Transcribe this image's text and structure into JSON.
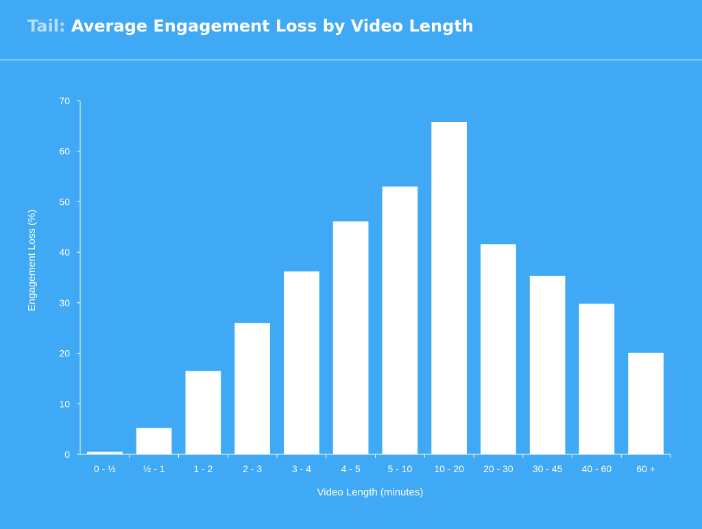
{
  "header": {
    "title_prefix": "Tail:",
    "title_main": "Average Engagement Loss by Video Length"
  },
  "chart_data": {
    "type": "bar",
    "title": "Tail: Average Engagement Loss by Video Length",
    "xlabel": "Video Length (minutes)",
    "ylabel": "Engagement Loss (%)",
    "ylim": [
      0,
      70
    ],
    "yticks": [
      0,
      10,
      20,
      30,
      40,
      50,
      60,
      70
    ],
    "categories": [
      "0 - ½",
      "½ - 1",
      "1 - 2",
      "2 - 3",
      "3 - 4",
      "4 - 5",
      "5 - 10",
      "10 - 20",
      "20 - 30",
      "30 - 45",
      "40 - 60",
      "60 +"
    ],
    "values": [
      0.5,
      5.2,
      16.5,
      26,
      36.2,
      46.1,
      53,
      65.8,
      41.6,
      35.3,
      29.8,
      20.1
    ],
    "grid": false,
    "legend": "none",
    "colors": {
      "background": "#3fa9f5",
      "bar": "#ffffff",
      "title_prefix": "#b8def9"
    }
  }
}
